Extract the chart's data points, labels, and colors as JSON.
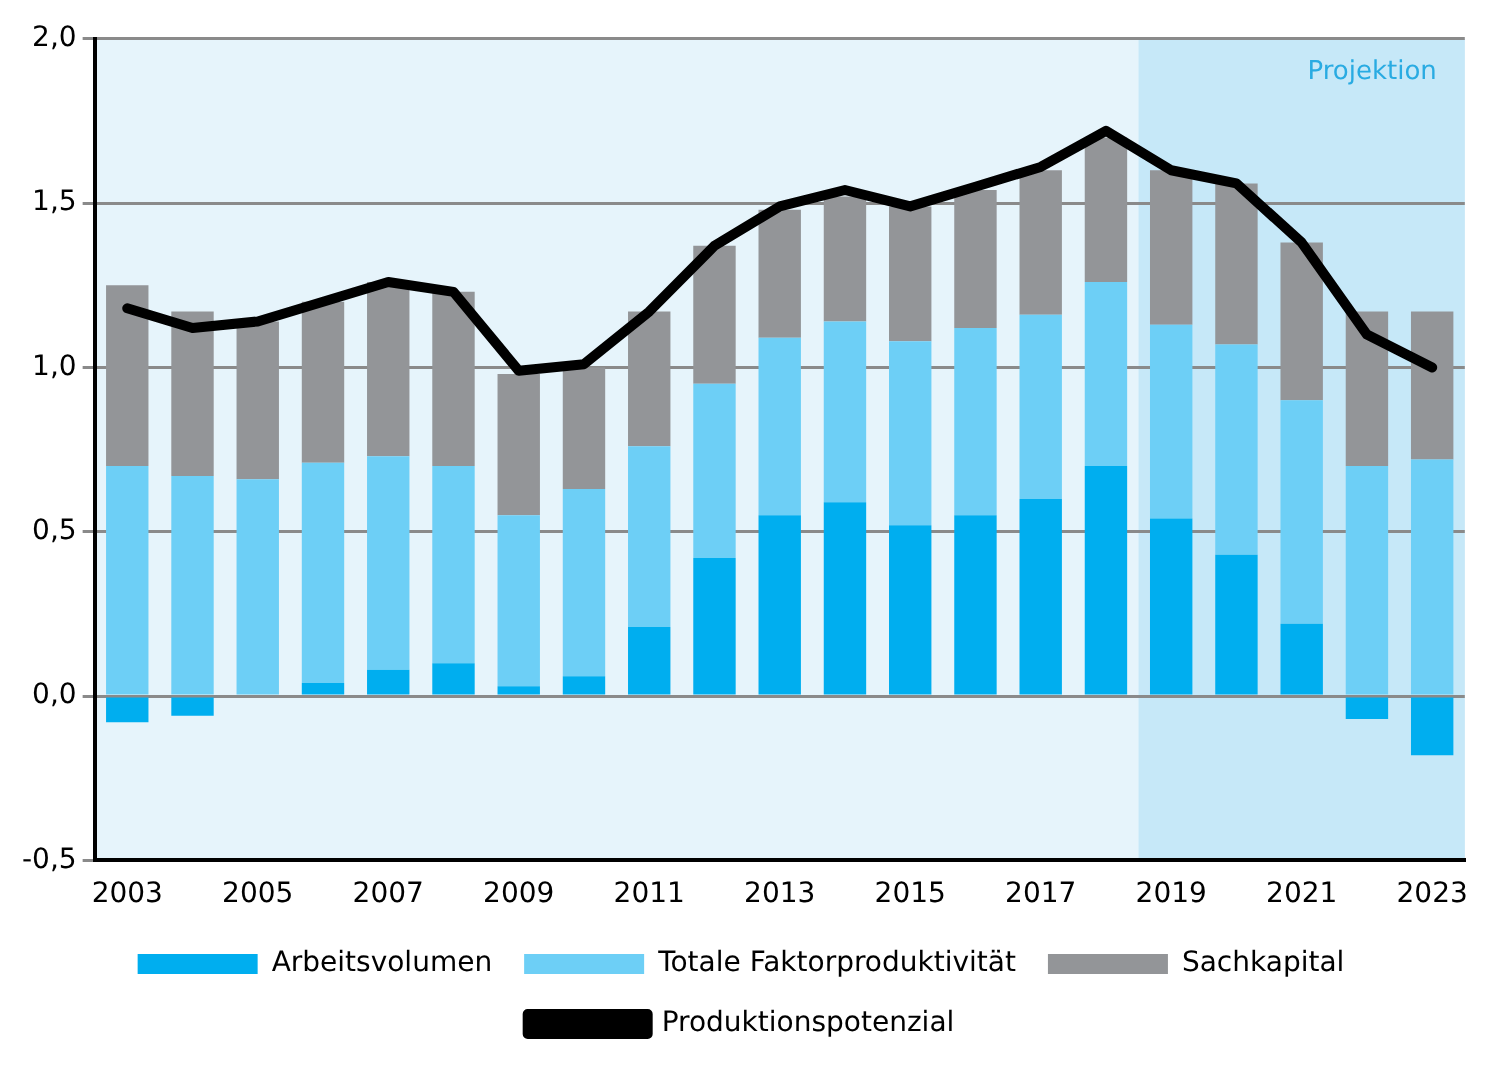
{
  "chart_data": {
    "type": "bar",
    "stacked": true,
    "categories": [
      "2003",
      null,
      "2005",
      null,
      "2007",
      null,
      "2009",
      null,
      "2011",
      null,
      "2013",
      null,
      "2015",
      null,
      "2017",
      null,
      "2019",
      null,
      "2021",
      null,
      "2023"
    ],
    "series": [
      {
        "name": "Arbeitsvolumen",
        "color": "#00aeef",
        "values": [
          -0.08,
          -0.06,
          0,
          0.04,
          0.08,
          0.1,
          0.03,
          0.06,
          0.21,
          0.42,
          0.55,
          0.59,
          0.52,
          0.55,
          0.6,
          0.7,
          0.54,
          0.43,
          0.22,
          -0.07,
          -0.18
        ]
      },
      {
        "name": "Totale Faktorproduktivität",
        "color": "#6dcff6",
        "values": [
          0.7,
          0.67,
          0.66,
          0.67,
          0.65,
          0.6,
          0.52,
          0.57,
          0.55,
          0.53,
          0.54,
          0.55,
          0.56,
          0.57,
          0.56,
          0.56,
          0.59,
          0.64,
          0.68,
          0.7,
          0.72
        ]
      },
      {
        "name": "Sachkapital",
        "color": "#939598",
        "values": [
          0.55,
          0.5,
          0.48,
          0.49,
          0.53,
          0.53,
          0.43,
          0.37,
          0.41,
          0.42,
          0.39,
          0.38,
          0.41,
          0.42,
          0.44,
          0.44,
          0.47,
          0.49,
          0.48,
          0.47,
          0.45
        ]
      },
      {
        "name": "Produktionspotenzial",
        "type": "line",
        "color": "#000000",
        "values": [
          1.18,
          1.12,
          1.14,
          1.2,
          1.26,
          1.23,
          0.99,
          1.01,
          1.17,
          1.37,
          1.49,
          1.54,
          1.49,
          1.55,
          1.61,
          1.72,
          1.6,
          1.56,
          1.38,
          1.1,
          1.0
        ]
      }
    ],
    "ylim": [
      -0.5,
      2.0
    ],
    "yticks": [
      {
        "value": -0.5,
        "label": "-0,5"
      },
      {
        "value": 0,
        "label": "0,0"
      },
      {
        "value": 0.5,
        "label": "0,5"
      },
      {
        "value": 1.0,
        "label": "1,0"
      },
      {
        "value": 1.5,
        "label": "1,5"
      },
      {
        "value": 2.0,
        "label": "2,0"
      }
    ],
    "bands": [
      {
        "axis": "x",
        "from": "2019",
        "to": "2023",
        "label": "Projektion",
        "color": "#c6e8f8"
      }
    ],
    "grid": "y",
    "legend": "bottom",
    "marker": "none"
  }
}
